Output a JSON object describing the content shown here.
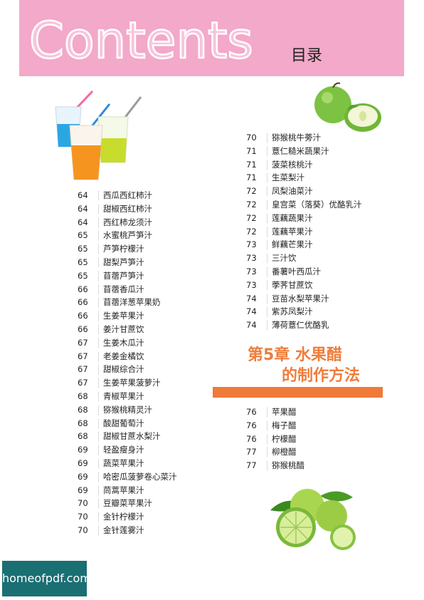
{
  "header": {
    "title": "Contents",
    "subtitle": "目录"
  },
  "toc_left": [
    {
      "page": "64",
      "title": "西瓜西红柿汁"
    },
    {
      "page": "64",
      "title": "甜椒西红柿汁"
    },
    {
      "page": "64",
      "title": "西红柿龙须汁"
    },
    {
      "page": "65",
      "title": "水蜜桃芦笋汁"
    },
    {
      "page": "65",
      "title": "芦笋柠檬汁"
    },
    {
      "page": "65",
      "title": "甜梨芦笋汁"
    },
    {
      "page": "65",
      "title": "苜蓿芦笋汁"
    },
    {
      "page": "66",
      "title": "苜蓿香瓜汁"
    },
    {
      "page": "66",
      "title": "苜蓿洋葱苹果奶"
    },
    {
      "page": "66",
      "title": "生姜苹果汁"
    },
    {
      "page": "66",
      "title": "姜汁甘蔗饮"
    },
    {
      "page": "67",
      "title": "生姜木瓜汁"
    },
    {
      "page": "67",
      "title": "老姜金橘饮"
    },
    {
      "page": "67",
      "title": "甜椒综合汁"
    },
    {
      "page": "67",
      "title": "生姜苹果菠萝汁"
    },
    {
      "page": "68",
      "title": "青椒苹果汁"
    },
    {
      "page": "68",
      "title": "猕猴桃精灵汁"
    },
    {
      "page": "68",
      "title": "酸甜葡萄汁"
    },
    {
      "page": "68",
      "title": "甜椒甘蔗水梨汁"
    },
    {
      "page": "69",
      "title": "轻盈瘦身汁"
    },
    {
      "page": "69",
      "title": "蔬菜苹果汁"
    },
    {
      "page": "69",
      "title": "哈密瓜菠萝卷心菜汁"
    },
    {
      "page": "69",
      "title": "茼蒿苹果汁"
    },
    {
      "page": "70",
      "title": "豆瓣菜苹果汁"
    },
    {
      "page": "70",
      "title": "金针柠檬汁"
    },
    {
      "page": "70",
      "title": "金针莲雾汁"
    }
  ],
  "toc_right": [
    {
      "page": "70",
      "title": "猕猴桃牛蒡汁"
    },
    {
      "page": "71",
      "title": "薏仁糙米蔬果汁"
    },
    {
      "page": "71",
      "title": "菠菜核桃汁"
    },
    {
      "page": "71",
      "title": "生菜梨汁"
    },
    {
      "page": "72",
      "title": "凤梨油菜汁"
    },
    {
      "page": "72",
      "title": "皇宫菜（落葵）优酪乳汁"
    },
    {
      "page": "72",
      "title": "莲藕蔬果汁"
    },
    {
      "page": "72",
      "title": "莲藕苹果汁"
    },
    {
      "page": "73",
      "title": "鲜藕芒果汁"
    },
    {
      "page": "73",
      "title": "三汁饮"
    },
    {
      "page": "73",
      "title": "番薯叶西瓜汁"
    },
    {
      "page": "73",
      "title": "荸荠甘蔗饮"
    },
    {
      "page": "74",
      "title": "豆苗水梨苹果汁"
    },
    {
      "page": "74",
      "title": "紫苏凤梨汁"
    },
    {
      "page": "74",
      "title": "薄荷薏仁优酪乳"
    }
  ],
  "chapter": {
    "line1": "第5章  水果醋",
    "line2": "的制作方法"
  },
  "toc_chapter5": [
    {
      "page": "76",
      "title": "苹果醋"
    },
    {
      "page": "76",
      "title": "梅子醋"
    },
    {
      "page": "76",
      "title": "柠檬醋"
    },
    {
      "page": "77",
      "title": "柳橙醋"
    },
    {
      "page": "77",
      "title": "猕猴桃醋"
    }
  ],
  "watermark": "homeofpdf.com",
  "colors": {
    "header_bg": "#f3a9c9",
    "accent_orange": "#ef7a3a",
    "watermark_bg": "#1a6f73"
  }
}
